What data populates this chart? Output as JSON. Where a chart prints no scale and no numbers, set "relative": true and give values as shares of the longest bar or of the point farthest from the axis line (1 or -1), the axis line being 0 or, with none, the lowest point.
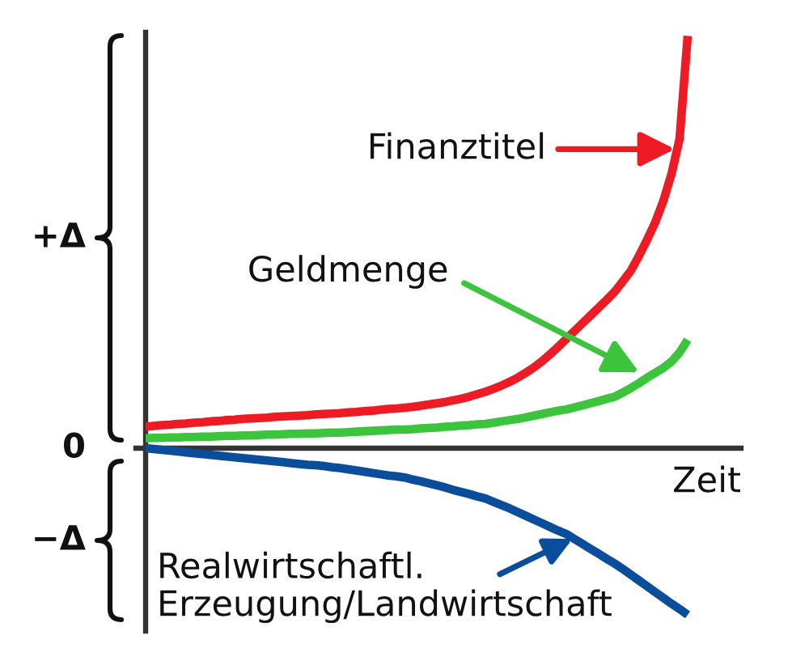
{
  "chart_data": {
    "type": "line",
    "relative": true,
    "xlabel": "Zeit",
    "categories": [
      null,
      null,
      null,
      null,
      null,
      null,
      null,
      null,
      null,
      null,
      null,
      null,
      null,
      null,
      null,
      null,
      null,
      null,
      null,
      null,
      null,
      null,
      null,
      null,
      null,
      null,
      null,
      null,
      null,
      null,
      null,
      null,
      null,
      null,
      null,
      null,
      null,
      null,
      null,
      null,
      null,
      null,
      null,
      null,
      null,
      null,
      null,
      null,
      null,
      null,
      null,
      null,
      null,
      null,
      null,
      null,
      null,
      null,
      null,
      null,
      null,
      null,
      null,
      null,
      null,
      null,
      null,
      null
    ],
    "series": [
      {
        "name": "Finanztitel",
        "color": "#ed1c24",
        "values": [
          0.052,
          0.054,
          0.056,
          0.057,
          0.059,
          0.06,
          0.062,
          0.063,
          0.065,
          0.066,
          0.068,
          0.069,
          0.071,
          0.072,
          0.073,
          0.074,
          0.076,
          0.077,
          0.078,
          0.079,
          0.08,
          0.082,
          0.083,
          0.084,
          0.085,
          0.087,
          0.088,
          0.09,
          0.091,
          0.093,
          0.095,
          0.096,
          0.098,
          0.1,
          0.103,
          0.106,
          0.109,
          0.112,
          0.116,
          0.12,
          0.125,
          0.131,
          0.137,
          0.144,
          0.152,
          0.161,
          0.171,
          0.183,
          0.196,
          0.211,
          0.228,
          0.246,
          0.265,
          0.284,
          0.303,
          0.322,
          0.341,
          0.36,
          0.38,
          0.405,
          0.431,
          0.467,
          0.506,
          0.548,
          0.6,
          0.665,
          0.75,
          1.0
        ]
      },
      {
        "name": "Geldmenge",
        "color": "#3cc43c",
        "values": [
          0.024,
          0.025,
          0.025,
          0.026,
          0.026,
          0.027,
          0.027,
          0.028,
          0.028,
          0.029,
          0.03,
          0.03,
          0.031,
          0.031,
          0.032,
          0.033,
          0.033,
          0.034,
          0.035,
          0.035,
          0.036,
          0.036,
          0.037,
          0.038,
          0.038,
          0.039,
          0.04,
          0.041,
          0.042,
          0.043,
          0.044,
          0.045,
          0.045,
          0.046,
          0.048,
          0.049,
          0.05,
          0.052,
          0.053,
          0.055,
          0.056,
          0.058,
          0.059,
          0.062,
          0.065,
          0.068,
          0.071,
          0.075,
          0.079,
          0.083,
          0.087,
          0.091,
          0.094,
          0.099,
          0.104,
          0.109,
          0.114,
          0.12,
          0.125,
          0.135,
          0.146,
          0.158,
          0.171,
          0.183,
          0.195,
          0.21,
          0.232,
          0.263
        ]
      },
      {
        "name": "Realwirtschaftl.\nErzeugung/Landwirtschaft",
        "color": "#0a4e9b",
        "values": [
          0.0,
          -0.002,
          -0.004,
          -0.006,
          -0.008,
          -0.01,
          -0.012,
          -0.014,
          -0.016,
          -0.018,
          -0.02,
          -0.022,
          -0.024,
          -0.026,
          -0.028,
          -0.03,
          -0.032,
          -0.034,
          -0.036,
          -0.038,
          -0.04,
          -0.041,
          -0.043,
          -0.046,
          -0.048,
          -0.051,
          -0.054,
          -0.057,
          -0.06,
          -0.063,
          -0.066,
          -0.068,
          -0.071,
          -0.076,
          -0.08,
          -0.085,
          -0.09,
          -0.095,
          -0.101,
          -0.106,
          -0.111,
          -0.117,
          -0.122,
          -0.13,
          -0.138,
          -0.146,
          -0.155,
          -0.164,
          -0.173,
          -0.182,
          -0.191,
          -0.2,
          -0.208,
          -0.22,
          -0.232,
          -0.244,
          -0.256,
          -0.268,
          -0.28,
          -0.293,
          -0.307,
          -0.321,
          -0.335,
          -0.349,
          -0.363,
          -0.377,
          -0.39,
          -0.404
        ]
      }
    ],
    "annotations": [
      "+Δ",
      "0",
      "−Δ"
    ]
  }
}
